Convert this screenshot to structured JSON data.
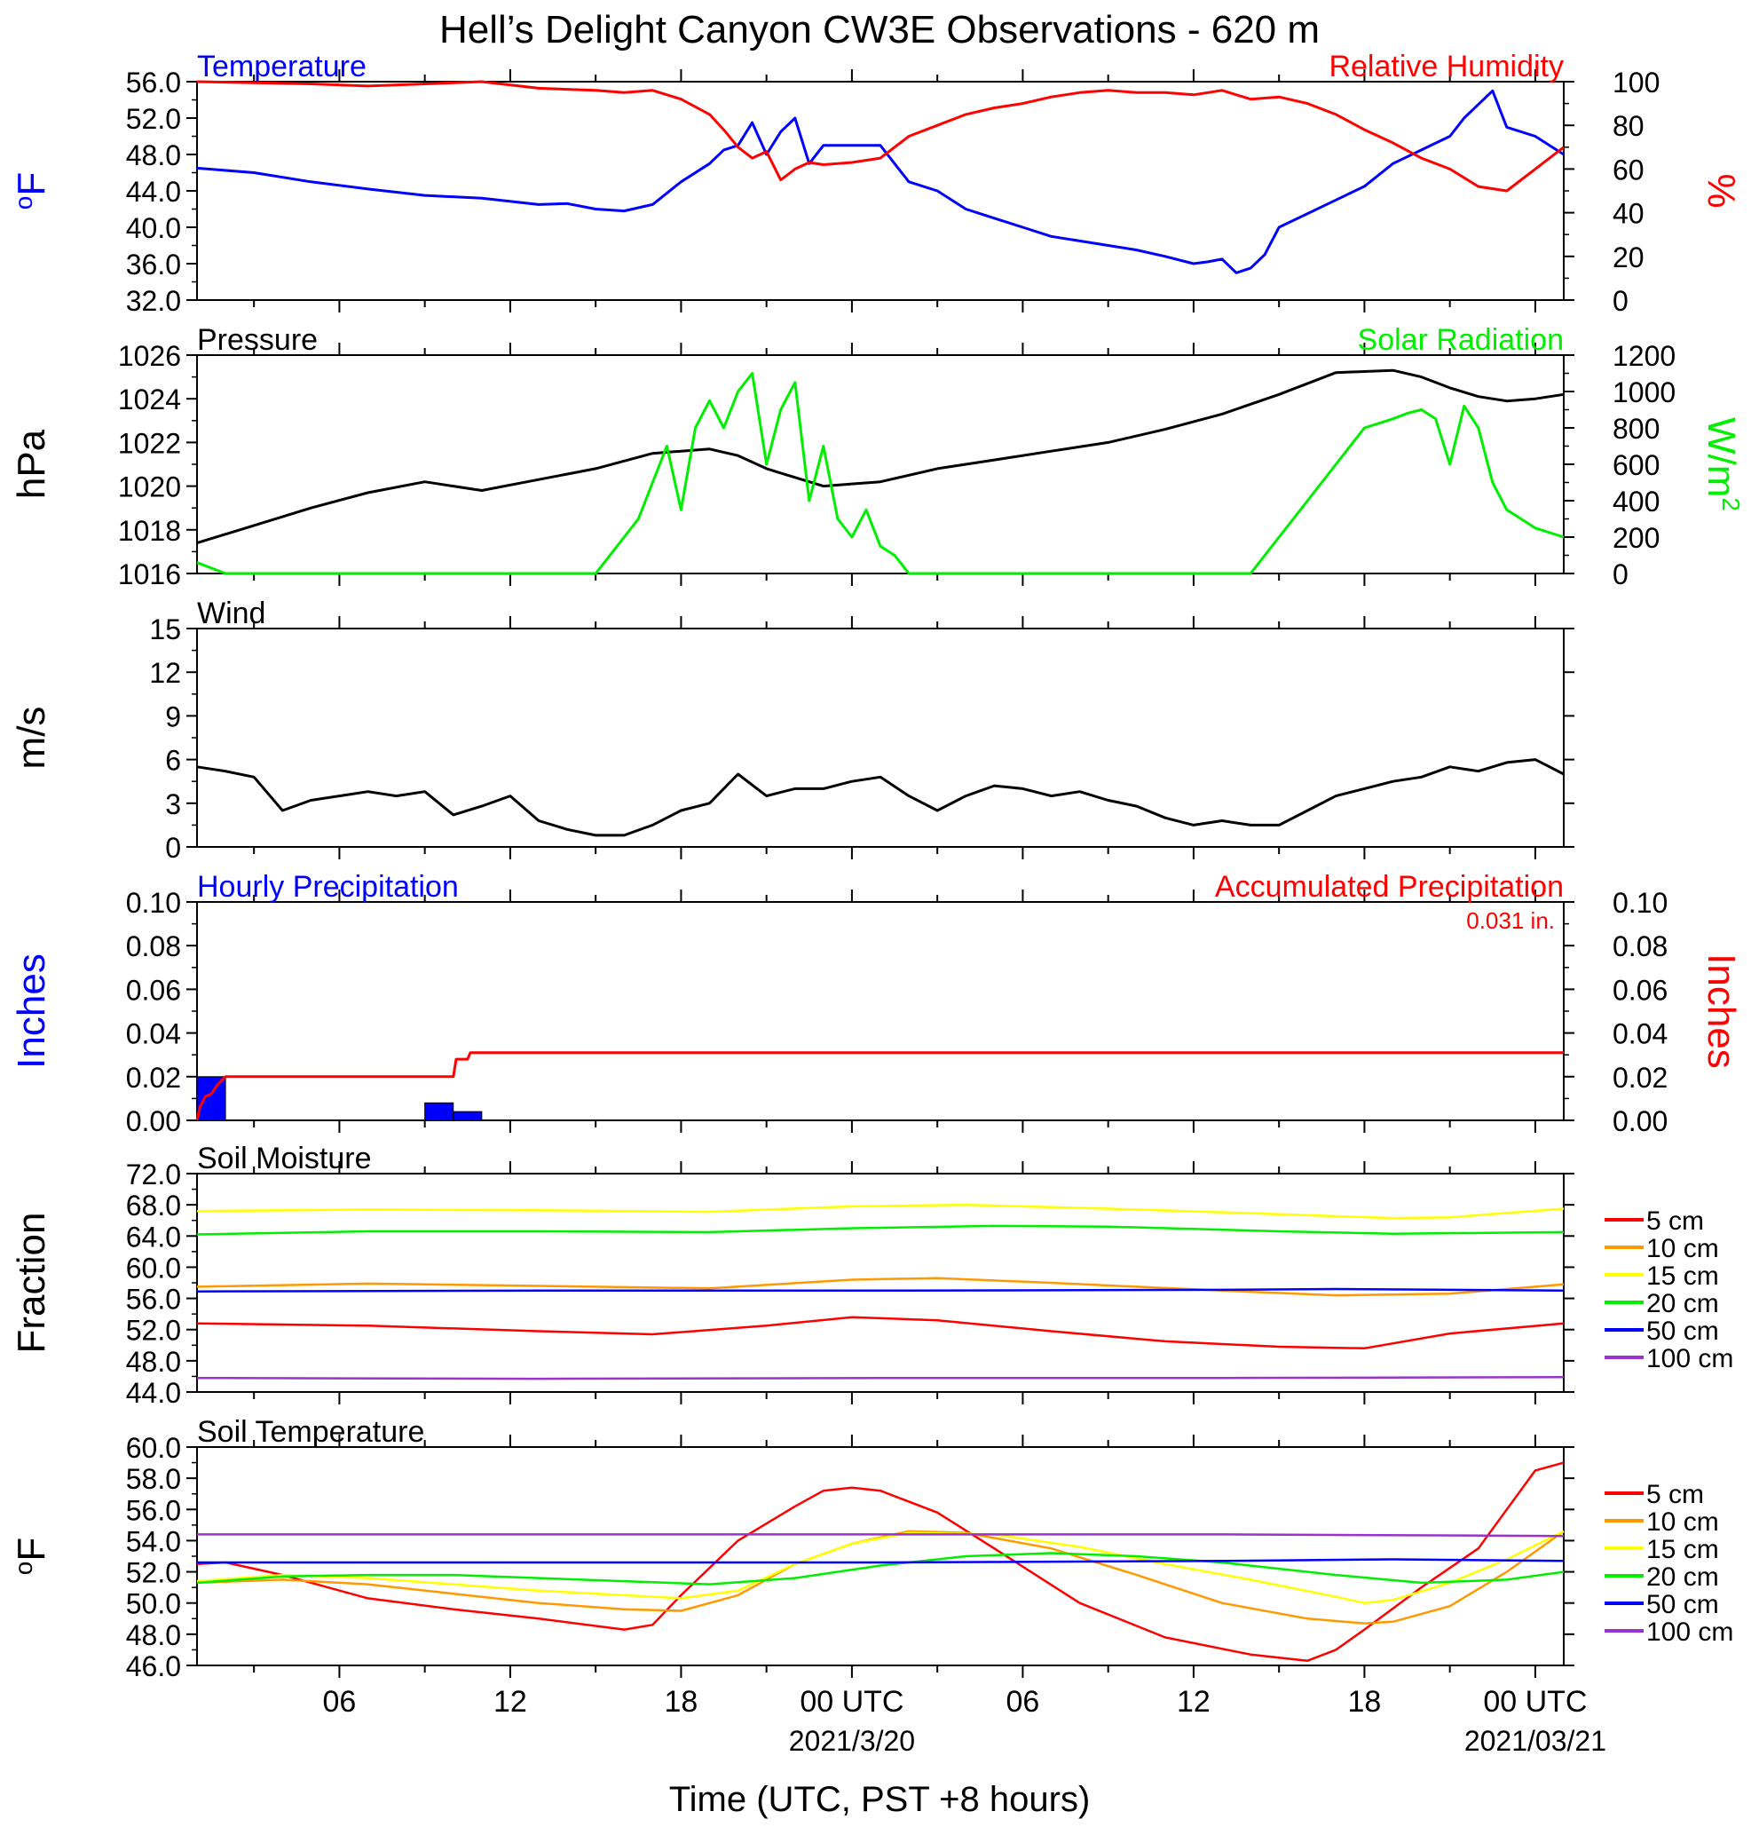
{
  "title": "Hell’s Delight Canyon CW3E Observations - 620 m",
  "xaxis": {
    "title": "Time (UTC, PST +8 hours)",
    "range_hours": [
      0,
      48
    ],
    "ticks": [
      {
        "h": 5,
        "label": "06",
        "sub": ""
      },
      {
        "h": 11,
        "label": "12",
        "sub": ""
      },
      {
        "h": 17,
        "label": "18",
        "sub": ""
      },
      {
        "h": 23,
        "label": "00 UTC",
        "sub": "2021/3/20"
      },
      {
        "h": 29,
        "label": "06",
        "sub": ""
      },
      {
        "h": 35,
        "label": "12",
        "sub": ""
      },
      {
        "h": 41,
        "label": "18",
        "sub": ""
      },
      {
        "h": 47,
        "label": "00 UTC",
        "sub": "2021/03/21"
      }
    ]
  },
  "colors": {
    "red": "#ff0000",
    "blue": "#0000ff",
    "green": "#00ee00",
    "black": "#000000",
    "orange": "#ff9900",
    "yellow": "#ffff00",
    "purple": "#9933cc"
  },
  "chart_data": [
    {
      "type": "line",
      "panel": "temperature-humidity",
      "title_left": "Temperature",
      "title_right": "Relative Humidity",
      "ylabel_left": "oF",
      "ylabel_right": "%",
      "ylim_left": [
        32,
        56
      ],
      "yticks_left": [
        "32.0",
        "36.0",
        "40.0",
        "44.0",
        "48.0",
        "52.0",
        "56.0"
      ],
      "ylim_right": [
        0,
        100
      ],
      "yticks_right": [
        "0",
        "20",
        "40",
        "60",
        "80",
        "100"
      ],
      "series": [
        {
          "name": "Temperature",
          "axis": "left",
          "color": "#0000ff",
          "x": [
            0,
            2,
            4,
            6,
            8,
            10,
            12,
            13,
            14,
            15,
            16,
            17,
            18,
            18.5,
            19,
            19.5,
            20,
            20.5,
            21,
            21.5,
            22,
            23,
            24,
            24.5,
            25,
            26,
            27,
            28,
            29,
            30,
            31,
            32,
            33,
            34,
            35,
            35.5,
            36,
            36.5,
            37,
            37.5,
            38,
            39,
            40,
            41,
            42,
            43,
            44,
            44.5,
            45,
            45.5,
            46,
            47,
            48
          ],
          "y": [
            46.5,
            46,
            45,
            44.2,
            43.5,
            43.2,
            42.5,
            42.6,
            42,
            41.8,
            42.5,
            45,
            47,
            48.5,
            49,
            51.5,
            48,
            50.5,
            52,
            47,
            49,
            49,
            49,
            47,
            45,
            44,
            42,
            41,
            40,
            39,
            38.5,
            38,
            37.5,
            36.8,
            36,
            36.2,
            36.5,
            35,
            35.5,
            37,
            40,
            41.5,
            43,
            44.5,
            47,
            48.5,
            50,
            52,
            53.5,
            55,
            51,
            50,
            48
          ]
        },
        {
          "name": "Relative Humidity",
          "axis": "right",
          "color": "#ff0000",
          "x": [
            0,
            4,
            6,
            8,
            10,
            12,
            14,
            15,
            16,
            17,
            18,
            18.5,
            19,
            19.5,
            20,
            20.5,
            21,
            21.5,
            22,
            23,
            24,
            25,
            26,
            27,
            28,
            29,
            30,
            31,
            32,
            33,
            34,
            35,
            36,
            37,
            38,
            39,
            40,
            41,
            42,
            43,
            44,
            45,
            46,
            47,
            48
          ],
          "y": [
            100,
            99,
            98,
            99,
            100,
            97,
            96,
            95,
            96,
            92,
            85,
            78,
            70,
            65,
            68,
            55,
            60,
            63,
            62,
            63,
            65,
            75,
            80,
            85,
            88,
            90,
            93,
            95,
            96,
            95,
            95,
            94,
            96,
            92,
            93,
            90,
            85,
            78,
            72,
            65,
            60,
            52,
            50,
            60,
            70
          ]
        }
      ]
    },
    {
      "type": "line",
      "panel": "pressure-solar",
      "title_left": "Pressure",
      "title_right": "Solar Radiation",
      "ylabel_left": "hPa",
      "ylabel_right": "W/m2",
      "ylim_left": [
        1016,
        1026
      ],
      "yticks_left": [
        "1016",
        "1018",
        "1020",
        "1022",
        "1024",
        "1026"
      ],
      "ylim_right": [
        0,
        1200
      ],
      "yticks_right": [
        "0",
        "200",
        "400",
        "600",
        "800",
        "1000",
        "1200"
      ],
      "series": [
        {
          "name": "Pressure",
          "axis": "left",
          "color": "#000000",
          "x": [
            0,
            2,
            4,
            6,
            8,
            10,
            12,
            14,
            16,
            17,
            18,
            19,
            20,
            21,
            22,
            23,
            24,
            26,
            28,
            30,
            32,
            34,
            36,
            38,
            40,
            42,
            43,
            44,
            45,
            46,
            47,
            48
          ],
          "y": [
            1017.4,
            1018.2,
            1019,
            1019.7,
            1020.2,
            1019.8,
            1020.3,
            1020.8,
            1021.5,
            1021.6,
            1021.7,
            1021.4,
            1020.8,
            1020.4,
            1020.0,
            1020.1,
            1020.2,
            1020.8,
            1021.2,
            1021.6,
            1022.0,
            1022.6,
            1023.3,
            1024.2,
            1025.2,
            1025.3,
            1025.0,
            1024.5,
            1024.1,
            1023.9,
            1024.0,
            1024.2
          ]
        },
        {
          "name": "Solar Radiation",
          "axis": "right",
          "color": "#00ee00",
          "x": [
            0,
            1,
            13,
            14,
            15,
            15.5,
            16,
            16.5,
            17,
            17.5,
            18,
            18.5,
            19,
            19.5,
            20,
            20.5,
            21,
            21.5,
            22,
            22.5,
            23,
            23.5,
            24,
            24.5,
            25,
            26,
            37,
            38,
            39,
            40,
            41,
            42,
            42.5,
            43,
            43.5,
            44,
            44.5,
            45,
            45.5,
            46,
            46.5,
            47,
            48
          ],
          "y": [
            60,
            0,
            0,
            0,
            200,
            300,
            500,
            700,
            350,
            800,
            950,
            800,
            1000,
            1100,
            600,
            900,
            1050,
            400,
            700,
            300,
            200,
            350,
            150,
            100,
            0,
            0,
            0,
            200,
            400,
            600,
            800,
            850,
            880,
            900,
            850,
            600,
            920,
            800,
            500,
            350,
            300,
            250,
            200
          ]
        }
      ]
    },
    {
      "type": "line",
      "panel": "wind",
      "title_left": "Wind",
      "ylabel_left": "m/s",
      "ylim_left": [
        0,
        15
      ],
      "yticks_left": [
        "0",
        "3",
        "6",
        "9",
        "12",
        "15"
      ],
      "series": [
        {
          "name": "Wind",
          "axis": "left",
          "color": "#000000",
          "x": [
            0,
            1,
            2,
            3,
            4,
            5,
            6,
            7,
            8,
            9,
            10,
            11,
            12,
            13,
            14,
            15,
            16,
            17,
            18,
            19,
            20,
            21,
            22,
            23,
            24,
            25,
            26,
            27,
            28,
            29,
            30,
            31,
            32,
            33,
            34,
            35,
            36,
            37,
            38,
            39,
            40,
            41,
            42,
            43,
            44,
            45,
            46,
            47,
            48
          ],
          "y": [
            5.5,
            5.2,
            4.8,
            2.5,
            3.2,
            3.5,
            3.8,
            3.5,
            3.8,
            2.2,
            2.8,
            3.5,
            1.8,
            1.2,
            0.8,
            0.8,
            1.5,
            2.5,
            3.0,
            5.0,
            3.5,
            4.0,
            4.0,
            4.5,
            4.8,
            3.5,
            2.5,
            3.5,
            4.2,
            4.0,
            3.5,
            3.8,
            3.2,
            2.8,
            2.0,
            1.5,
            1.8,
            1.5,
            1.5,
            2.5,
            3.5,
            4.0,
            4.5,
            4.8,
            5.5,
            5.2,
            5.8,
            6.0,
            5.0
          ]
        }
      ]
    },
    {
      "type": "bar",
      "panel": "precipitation",
      "title_left": "Hourly Precipitation",
      "title_right": "Accumulated Precipitation",
      "annotation": "0.031 in.",
      "ylabel_left": "Inches",
      "ylabel_right": "Inches",
      "ylim_left": [
        0,
        0.1
      ],
      "yticks_left": [
        "0.00",
        "0.02",
        "0.04",
        "0.06",
        "0.08",
        "0.10"
      ],
      "ylim_right": [
        0,
        0.1
      ],
      "yticks_right": [
        "0.00",
        "0.02",
        "0.04",
        "0.06",
        "0.08",
        "0.10"
      ],
      "bars": [
        {
          "x0": 0,
          "x1": 1,
          "value": 0.02
        },
        {
          "x0": 8,
          "x1": 9,
          "value": 0.008
        },
        {
          "x0": 9,
          "x1": 10,
          "value": 0.004
        }
      ],
      "series": [
        {
          "name": "Accumulated Precipitation",
          "axis": "right",
          "color": "#ff0000",
          "x": [
            0,
            0.1,
            0.3,
            0.5,
            0.7,
            1.0,
            8.0,
            9.0,
            9.1,
            9.5,
            9.6,
            48
          ],
          "y": [
            0,
            0.006,
            0.011,
            0.012,
            0.016,
            0.02,
            0.02,
            0.02,
            0.028,
            0.028,
            0.031,
            0.031
          ]
        }
      ]
    },
    {
      "type": "line",
      "panel": "soil-moisture",
      "title_left": "Soil Moisture",
      "ylabel_left": "Fraction",
      "ylim_left": [
        44,
        72
      ],
      "yticks_left": [
        "44.0",
        "48.0",
        "52.0",
        "56.0",
        "60.0",
        "64.0",
        "68.0",
        "72.0"
      ],
      "legend": "right",
      "series": [
        {
          "name": "5 cm",
          "color": "#ff0000",
          "x": [
            0,
            6,
            12,
            16,
            20,
            23,
            26,
            30,
            34,
            38,
            41,
            44,
            48
          ],
          "y": [
            52.8,
            52.5,
            51.8,
            51.4,
            52.5,
            53.6,
            53.2,
            51.8,
            50.5,
            49.8,
            49.6,
            51.5,
            52.8
          ]
        },
        {
          "name": "10 cm",
          "color": "#ff9900",
          "x": [
            0,
            6,
            12,
            18,
            23,
            26,
            30,
            36,
            40,
            44,
            48
          ],
          "y": [
            57.5,
            57.9,
            57.6,
            57.3,
            58.4,
            58.6,
            58.0,
            57.0,
            56.4,
            56.6,
            57.8
          ]
        },
        {
          "name": "15 cm",
          "color": "#ffff00",
          "x": [
            0,
            6,
            12,
            18,
            23,
            27,
            32,
            38,
            42,
            44,
            48
          ],
          "y": [
            67.2,
            67.4,
            67.3,
            67.1,
            67.8,
            68.0,
            67.5,
            66.8,
            66.3,
            66.4,
            67.5
          ]
        },
        {
          "name": "20 cm",
          "color": "#00ee00",
          "x": [
            0,
            6,
            12,
            18,
            23,
            28,
            32,
            38,
            42,
            48
          ],
          "y": [
            64.2,
            64.6,
            64.6,
            64.5,
            65.0,
            65.3,
            65.2,
            64.6,
            64.3,
            64.5
          ]
        },
        {
          "name": "50 cm",
          "color": "#0000ff",
          "x": [
            0,
            12,
            24,
            36,
            40,
            44,
            48
          ],
          "y": [
            56.9,
            57.0,
            57.0,
            57.1,
            57.2,
            57.1,
            57.0
          ]
        },
        {
          "name": "100 cm",
          "color": "#9933cc",
          "x": [
            0,
            12,
            24,
            36,
            48
          ],
          "y": [
            45.8,
            45.7,
            45.8,
            45.8,
            45.9
          ]
        }
      ]
    },
    {
      "type": "line",
      "panel": "soil-temperature",
      "title_left": "Soil Temperature",
      "ylabel_left": "oF",
      "ylim_left": [
        46,
        60
      ],
      "yticks_left": [
        "46.0",
        "48.0",
        "50.0",
        "52.0",
        "54.0",
        "56.0",
        "58.0",
        "60.0"
      ],
      "legend": "right",
      "series": [
        {
          "name": "5 cm",
          "color": "#ff0000",
          "x": [
            0,
            1,
            3,
            6,
            9,
            12,
            15,
            16,
            17,
            19,
            21,
            22,
            23,
            24,
            26,
            28,
            31,
            34,
            37,
            39,
            40,
            41,
            43,
            45,
            46,
            47,
            48
          ],
          "y": [
            52.5,
            52.6,
            51.8,
            50.3,
            49.6,
            49.0,
            48.3,
            48.6,
            50.5,
            54.0,
            56.2,
            57.2,
            57.4,
            57.2,
            55.8,
            53.5,
            50.0,
            47.8,
            46.7,
            46.3,
            47.0,
            48.3,
            51.0,
            53.5,
            56.0,
            58.5,
            59.0
          ]
        },
        {
          "name": "10 cm",
          "color": "#ff9900",
          "x": [
            0,
            3,
            6,
            9,
            12,
            15,
            17,
            19,
            21,
            23,
            25,
            27,
            30,
            33,
            36,
            39,
            41,
            42,
            44,
            46,
            48
          ],
          "y": [
            51.3,
            51.5,
            51.2,
            50.6,
            50.0,
            49.6,
            49.5,
            50.5,
            52.5,
            53.8,
            54.6,
            54.5,
            53.5,
            51.8,
            50.0,
            49.0,
            48.7,
            48.8,
            49.8,
            52.0,
            54.6
          ]
        },
        {
          "name": "15 cm",
          "color": "#ffff00",
          "x": [
            0,
            3,
            6,
            9,
            12,
            15,
            17,
            19,
            21,
            23,
            25,
            28,
            31,
            34,
            37,
            40,
            41,
            42,
            44,
            46,
            48
          ],
          "y": [
            51.4,
            51.8,
            51.6,
            51.2,
            50.8,
            50.5,
            50.3,
            50.8,
            52.5,
            53.8,
            54.5,
            54.4,
            53.6,
            52.5,
            51.5,
            50.4,
            50.0,
            50.2,
            51.3,
            52.8,
            54.6
          ]
        },
        {
          "name": "20 cm",
          "color": "#00ee00",
          "x": [
            0,
            3,
            6,
            9,
            12,
            15,
            18,
            21,
            24,
            27,
            30,
            33,
            36,
            40,
            43,
            46,
            48
          ],
          "y": [
            51.3,
            51.7,
            51.8,
            51.8,
            51.6,
            51.4,
            51.2,
            51.6,
            52.4,
            53.0,
            53.2,
            53.0,
            52.6,
            51.8,
            51.3,
            51.5,
            52.0
          ]
        },
        {
          "name": "50 cm",
          "color": "#0000ff",
          "x": [
            0,
            12,
            24,
            36,
            42,
            48
          ],
          "y": [
            52.6,
            52.6,
            52.6,
            52.7,
            52.8,
            52.7
          ]
        },
        {
          "name": "100 cm",
          "color": "#9933cc",
          "x": [
            0,
            12,
            24,
            36,
            48
          ],
          "y": [
            54.4,
            54.4,
            54.4,
            54.4,
            54.3
          ]
        }
      ]
    }
  ]
}
